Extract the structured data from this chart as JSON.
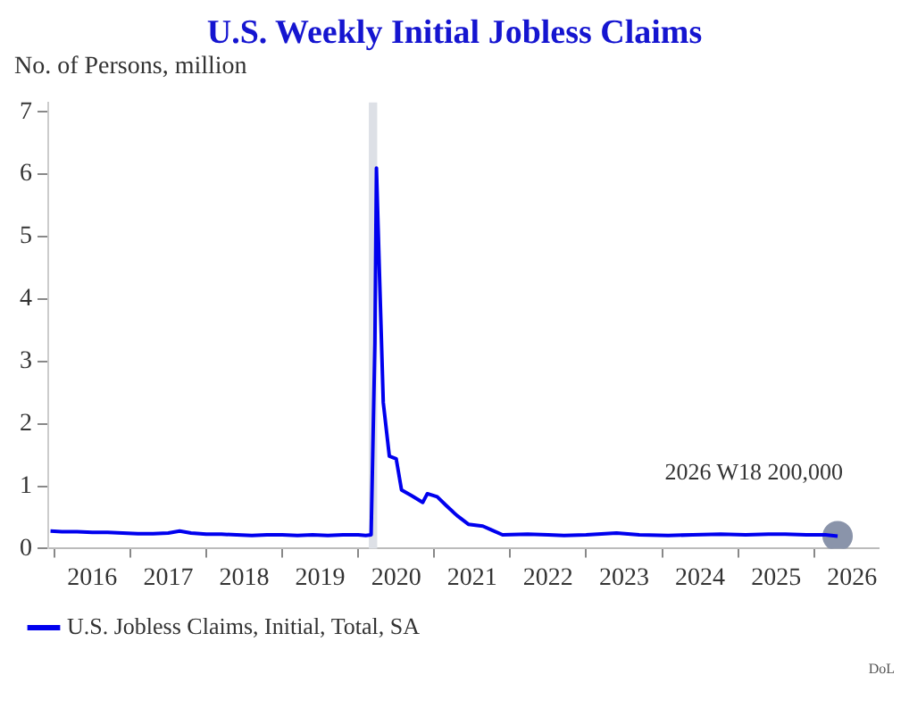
{
  "chart_data": {
    "type": "line",
    "title": "U.S. Weekly Initial Jobless Claims",
    "ylabel": "No. of Persons, million",
    "xlim": [
      2015.92,
      2026.85
    ],
    "ylim": [
      0,
      7.15
    ],
    "xticks": [
      {
        "value": 2016,
        "label": null
      },
      {
        "value": 2016.5,
        "label": "2016"
      },
      {
        "value": 2017,
        "label": null
      },
      {
        "value": 2017.5,
        "label": "2017"
      },
      {
        "value": 2018,
        "label": null
      },
      {
        "value": 2018.5,
        "label": "2018"
      },
      {
        "value": 2019,
        "label": null
      },
      {
        "value": 2019.5,
        "label": "2019"
      },
      {
        "value": 2020,
        "label": null
      },
      {
        "value": 2020.5,
        "label": "2020"
      },
      {
        "value": 2021,
        "label": null
      },
      {
        "value": 2021.5,
        "label": "2021"
      },
      {
        "value": 2022,
        "label": null
      },
      {
        "value": 2022.5,
        "label": "2022"
      },
      {
        "value": 2023,
        "label": null
      },
      {
        "value": 2023.5,
        "label": "2023"
      },
      {
        "value": 2024,
        "label": null
      },
      {
        "value": 2024.5,
        "label": "2024"
      },
      {
        "value": 2025,
        "label": null
      },
      {
        "value": 2025.5,
        "label": "2025"
      },
      {
        "value": 2026,
        "label": null
      },
      {
        "value": 2026.5,
        "label": "2026"
      }
    ],
    "yticks": [
      0,
      1,
      2,
      3,
      4,
      5,
      6,
      7
    ],
    "legend": "bottom",
    "marker": "none",
    "line_style": "solid",
    "bands": [
      {
        "axis": "x",
        "from": 2020.14,
        "to": 2020.25,
        "color": "#dde0e6"
      }
    ],
    "annotations": [
      "2026 W18 200,000",
      "DoL"
    ],
    "series": [
      {
        "name": "U.S. Jobless Claims, Initial, Total, SA",
        "color": "#0000ee",
        "x": [
          2015.95,
          2016.1,
          2016.3,
          2016.5,
          2016.7,
          2016.9,
          2017.1,
          2017.3,
          2017.5,
          2017.65,
          2017.8,
          2018.0,
          2018.2,
          2018.4,
          2018.6,
          2018.8,
          2019.0,
          2019.2,
          2019.4,
          2019.6,
          2019.8,
          2020.0,
          2020.1,
          2020.17,
          2020.22,
          2020.24,
          2020.28,
          2020.33,
          2020.41,
          2020.5,
          2020.57,
          2020.7,
          2020.85,
          2020.91,
          2021.04,
          2021.15,
          2021.3,
          2021.45,
          2021.64,
          2021.75,
          2021.9,
          2022.23,
          2022.5,
          2022.71,
          2023.0,
          2023.4,
          2023.7,
          2024.08,
          2024.4,
          2024.77,
          2025.1,
          2025.4,
          2025.62,
          2025.9,
          2026.15,
          2026.31
        ],
        "values": [
          0.28,
          0.27,
          0.27,
          0.26,
          0.26,
          0.25,
          0.24,
          0.24,
          0.25,
          0.28,
          0.25,
          0.23,
          0.23,
          0.22,
          0.21,
          0.22,
          0.22,
          0.21,
          0.22,
          0.21,
          0.22,
          0.22,
          0.21,
          0.22,
          3.3,
          6.1,
          4.4,
          2.34,
          1.48,
          1.44,
          0.94,
          0.85,
          0.74,
          0.88,
          0.83,
          0.7,
          0.53,
          0.39,
          0.36,
          0.3,
          0.22,
          0.23,
          0.22,
          0.21,
          0.22,
          0.25,
          0.22,
          0.21,
          0.22,
          0.23,
          0.22,
          0.23,
          0.23,
          0.22,
          0.22,
          0.2
        ]
      },
      {
        "type": "scatter",
        "color": "#8a94aa",
        "marker": "circle",
        "x": [
          2026.31
        ],
        "values": [
          0.2
        ]
      }
    ]
  }
}
